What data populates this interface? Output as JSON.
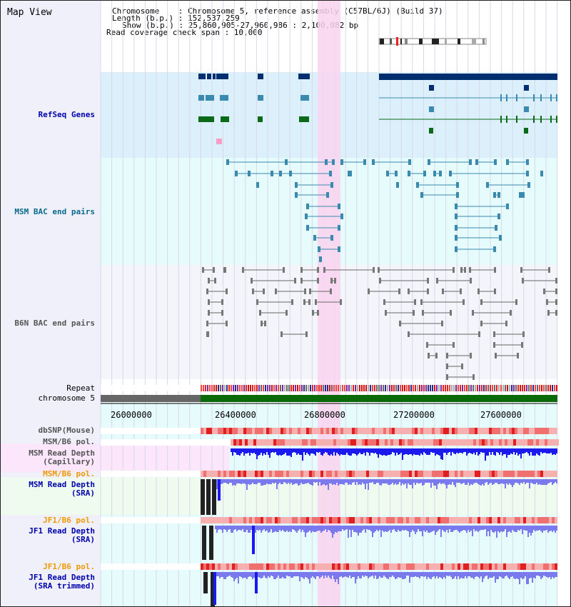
{
  "page": {
    "title": "Map View"
  },
  "info": {
    "chromosome_line": "Chromosome    : Chromosome 5, reference assembly (C57BL/6J) (Build 37)",
    "length_line": "Length (b.p.) : 152,537,259",
    "show_line": "Show (b.p.) : 25,860,905-27,960,986 : 2,100,082 bp",
    "coverage_line": "Read coverage check span : 10,000"
  },
  "tracks": {
    "refseq": {
      "label": "RefSeq Genes",
      "color": "#0000aa"
    },
    "msm_bac": {
      "label": "MSM BAC end pairs",
      "color": "#0a6a8a"
    },
    "b6n_bac": {
      "label": "B6N BAC end pairs",
      "color": "#555555"
    },
    "repeat": {
      "label": "Repeat"
    },
    "chromosome": {
      "label": "chromosome 5"
    },
    "dbsnp": {
      "label": "dbSNP(Mouse)"
    },
    "msm_b6_pol_a": {
      "label": "MSM/B6 pol."
    },
    "msm_depth_cap": {
      "label": "MSM Read Depth\n(Capillary)"
    },
    "msm_b6_pol_b": {
      "label": "MSM/B6 pol.",
      "color": "#ee9900"
    },
    "msm_depth_sra": {
      "label": "MSM Read Depth\n(SRA)",
      "color": "#0000aa"
    },
    "jf1_pol_a": {
      "label": "JF1/B6 pol.",
      "color": "#ee9900"
    },
    "jf1_depth_sra": {
      "label": "JF1 Read Depth\n(SRA)",
      "color": "#0000aa"
    },
    "jf1_pol_b": {
      "label": "JF1/B6 pol.",
      "color": "#ee9900"
    },
    "jf1_depth_trim": {
      "label": "JF1 Read Depth\n(SRA trimmed)",
      "color": "#0000aa"
    }
  },
  "axis": {
    "ticks": [
      "26000000",
      "26400000",
      "26800000",
      "27200000",
      "27600000"
    ]
  },
  "colors": {
    "refseq_bg": "#dbf0fb",
    "msm_bg": "#e6fbfb",
    "b6n_bg": "#f4f4fb",
    "highlight": "#f9d4ef",
    "gene_dark": "#002e6e",
    "gene_mid": "#3a8ab0",
    "gene_green": "#0a6a1a",
    "chrom_green": "#0a6a0a",
    "snp_red": "#ee3333",
    "depth_blue": "#1a1aee",
    "depth_light": "#7a7aee"
  }
}
